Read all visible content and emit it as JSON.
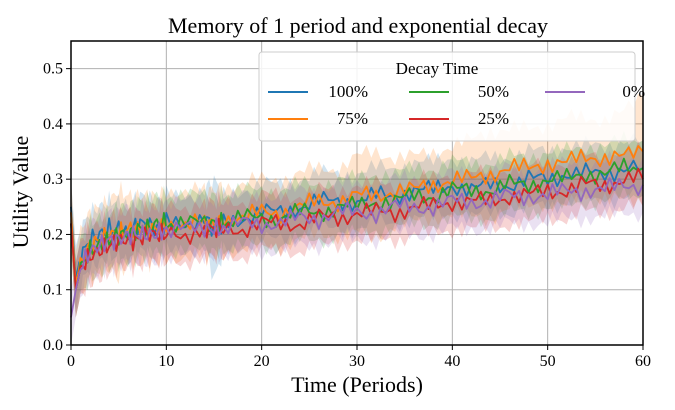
{
  "chart_data": {
    "type": "line",
    "title": "Memory of 1 period and exponential decay",
    "xlabel": "Time (Periods)",
    "ylabel": "Utility Value",
    "xlim": [
      0,
      60
    ],
    "ylim": [
      0.0,
      0.55
    ],
    "xticks": [
      0,
      10,
      20,
      30,
      40,
      50,
      60
    ],
    "xtick_labels": [
      "0",
      "10",
      "20",
      "30",
      "40",
      "50",
      "60"
    ],
    "yticks": [
      0.0,
      0.1,
      0.2,
      0.3,
      0.4,
      0.5
    ],
    "ytick_labels": [
      "0.0",
      "0.1",
      "0.2",
      "0.3",
      "0.4",
      "0.5"
    ],
    "grid": true,
    "legend": {
      "title": "Decay Time",
      "placement": "top-right",
      "columns": 3
    },
    "series": [
      {
        "name": "100%",
        "color": "#1f77b4",
        "x": [
          0,
          0.5,
          1,
          2,
          3,
          4,
          5,
          6,
          7,
          8,
          9,
          10,
          12,
          14,
          15,
          16,
          18,
          20,
          22,
          24,
          26,
          28,
          30,
          32,
          34,
          36,
          38,
          40,
          42,
          44,
          46,
          48,
          50,
          52,
          54,
          56,
          58,
          60
        ],
        "y": [
          0.25,
          0.12,
          0.16,
          0.19,
          0.2,
          0.21,
          0.21,
          0.2,
          0.22,
          0.22,
          0.21,
          0.22,
          0.22,
          0.23,
          0.21,
          0.22,
          0.23,
          0.24,
          0.24,
          0.25,
          0.26,
          0.26,
          0.26,
          0.27,
          0.27,
          0.28,
          0.28,
          0.29,
          0.28,
          0.29,
          0.29,
          0.3,
          0.3,
          0.31,
          0.31,
          0.31,
          0.32,
          0.32
        ],
        "band": [
          0.05,
          0.06,
          0.05,
          0.05,
          0.05,
          0.05,
          0.05,
          0.05,
          0.05,
          0.05,
          0.05,
          0.05,
          0.05,
          0.05,
          0.09,
          0.05,
          0.05,
          0.05,
          0.05,
          0.05,
          0.05,
          0.05,
          0.05,
          0.05,
          0.05,
          0.05,
          0.05,
          0.05,
          0.05,
          0.05,
          0.05,
          0.05,
          0.05,
          0.05,
          0.05,
          0.05,
          0.05,
          0.05
        ]
      },
      {
        "name": "75%",
        "color": "#ff7f0e",
        "x": [
          0,
          0.5,
          1,
          2,
          3,
          4,
          5,
          6,
          7,
          8,
          9,
          10,
          12,
          14,
          15,
          16,
          18,
          20,
          22,
          24,
          26,
          28,
          30,
          32,
          34,
          36,
          38,
          40,
          42,
          44,
          46,
          48,
          50,
          52,
          54,
          56,
          58,
          60
        ],
        "y": [
          0.24,
          0.11,
          0.15,
          0.18,
          0.19,
          0.2,
          0.2,
          0.21,
          0.21,
          0.21,
          0.21,
          0.22,
          0.22,
          0.22,
          0.22,
          0.23,
          0.23,
          0.24,
          0.24,
          0.25,
          0.26,
          0.26,
          0.27,
          0.27,
          0.28,
          0.28,
          0.29,
          0.3,
          0.3,
          0.31,
          0.32,
          0.32,
          0.33,
          0.33,
          0.34,
          0.34,
          0.34,
          0.35
        ],
        "band": [
          0.06,
          0.06,
          0.06,
          0.06,
          0.06,
          0.06,
          0.08,
          0.06,
          0.06,
          0.06,
          0.06,
          0.06,
          0.06,
          0.06,
          0.06,
          0.06,
          0.06,
          0.06,
          0.06,
          0.06,
          0.06,
          0.06,
          0.07,
          0.08,
          0.06,
          0.06,
          0.06,
          0.06,
          0.07,
          0.08,
          0.07,
          0.07,
          0.07,
          0.08,
          0.07,
          0.07,
          0.08,
          0.1
        ]
      },
      {
        "name": "50%",
        "color": "#2ca02c",
        "x": [
          0,
          0.5,
          1,
          2,
          3,
          4,
          5,
          6,
          7,
          8,
          9,
          10,
          12,
          14,
          15,
          16,
          18,
          20,
          22,
          24,
          26,
          28,
          30,
          32,
          34,
          36,
          38,
          40,
          42,
          44,
          46,
          48,
          50,
          52,
          54,
          56,
          58,
          60
        ],
        "y": [
          0.22,
          0.1,
          0.14,
          0.17,
          0.18,
          0.19,
          0.2,
          0.2,
          0.21,
          0.21,
          0.22,
          0.22,
          0.22,
          0.22,
          0.22,
          0.22,
          0.23,
          0.23,
          0.23,
          0.24,
          0.24,
          0.25,
          0.25,
          0.26,
          0.26,
          0.27,
          0.27,
          0.28,
          0.28,
          0.28,
          0.29,
          0.29,
          0.3,
          0.3,
          0.31,
          0.31,
          0.32,
          0.32
        ],
        "band": [
          0.05,
          0.05,
          0.05,
          0.05,
          0.05,
          0.05,
          0.05,
          0.05,
          0.05,
          0.05,
          0.05,
          0.05,
          0.05,
          0.05,
          0.05,
          0.05,
          0.05,
          0.05,
          0.05,
          0.05,
          0.05,
          0.05,
          0.05,
          0.05,
          0.05,
          0.05,
          0.05,
          0.05,
          0.05,
          0.05,
          0.05,
          0.05,
          0.05,
          0.05,
          0.05,
          0.05,
          0.05,
          0.05
        ]
      },
      {
        "name": "25%",
        "color": "#d62728",
        "x": [
          0,
          0.5,
          1,
          2,
          3,
          4,
          5,
          6,
          7,
          8,
          9,
          10,
          12,
          14,
          15,
          16,
          18,
          20,
          22,
          24,
          26,
          28,
          30,
          32,
          34,
          36,
          38,
          40,
          42,
          44,
          46,
          48,
          50,
          52,
          54,
          56,
          58,
          60
        ],
        "y": [
          0.22,
          0.1,
          0.14,
          0.16,
          0.17,
          0.18,
          0.19,
          0.19,
          0.19,
          0.2,
          0.2,
          0.2,
          0.2,
          0.21,
          0.21,
          0.21,
          0.21,
          0.22,
          0.22,
          0.22,
          0.23,
          0.23,
          0.24,
          0.24,
          0.24,
          0.25,
          0.25,
          0.26,
          0.26,
          0.26,
          0.27,
          0.27,
          0.28,
          0.28,
          0.29,
          0.29,
          0.3,
          0.3
        ],
        "band": [
          0.05,
          0.05,
          0.05,
          0.05,
          0.05,
          0.05,
          0.05,
          0.05,
          0.05,
          0.05,
          0.05,
          0.05,
          0.05,
          0.05,
          0.05,
          0.05,
          0.05,
          0.05,
          0.05,
          0.05,
          0.05,
          0.05,
          0.05,
          0.05,
          0.05,
          0.05,
          0.05,
          0.05,
          0.05,
          0.05,
          0.05,
          0.05,
          0.05,
          0.05,
          0.05,
          0.05,
          0.05,
          0.05
        ]
      },
      {
        "name": "0%",
        "color": "#9467bd",
        "x": [
          0,
          0.5,
          1,
          2,
          3,
          4,
          5,
          6,
          7,
          8,
          9,
          10,
          12,
          14,
          15,
          16,
          18,
          20,
          22,
          24,
          26,
          28,
          30,
          32,
          34,
          36,
          38,
          40,
          42,
          44,
          46,
          48,
          50,
          52,
          54,
          56,
          58,
          60
        ],
        "y": [
          0.05,
          0.1,
          0.14,
          0.17,
          0.18,
          0.19,
          0.19,
          0.2,
          0.2,
          0.2,
          0.2,
          0.21,
          0.21,
          0.21,
          0.21,
          0.21,
          0.22,
          0.22,
          0.22,
          0.23,
          0.23,
          0.24,
          0.24,
          0.24,
          0.25,
          0.25,
          0.25,
          0.26,
          0.26,
          0.26,
          0.27,
          0.27,
          0.27,
          0.28,
          0.28,
          0.28,
          0.29,
          0.29
        ],
        "band": [
          0.05,
          0.05,
          0.05,
          0.05,
          0.05,
          0.05,
          0.05,
          0.05,
          0.05,
          0.05,
          0.05,
          0.05,
          0.05,
          0.05,
          0.05,
          0.05,
          0.05,
          0.05,
          0.05,
          0.05,
          0.05,
          0.05,
          0.05,
          0.05,
          0.05,
          0.05,
          0.05,
          0.05,
          0.05,
          0.05,
          0.05,
          0.05,
          0.05,
          0.05,
          0.05,
          0.05,
          0.05,
          0.05
        ]
      }
    ]
  }
}
